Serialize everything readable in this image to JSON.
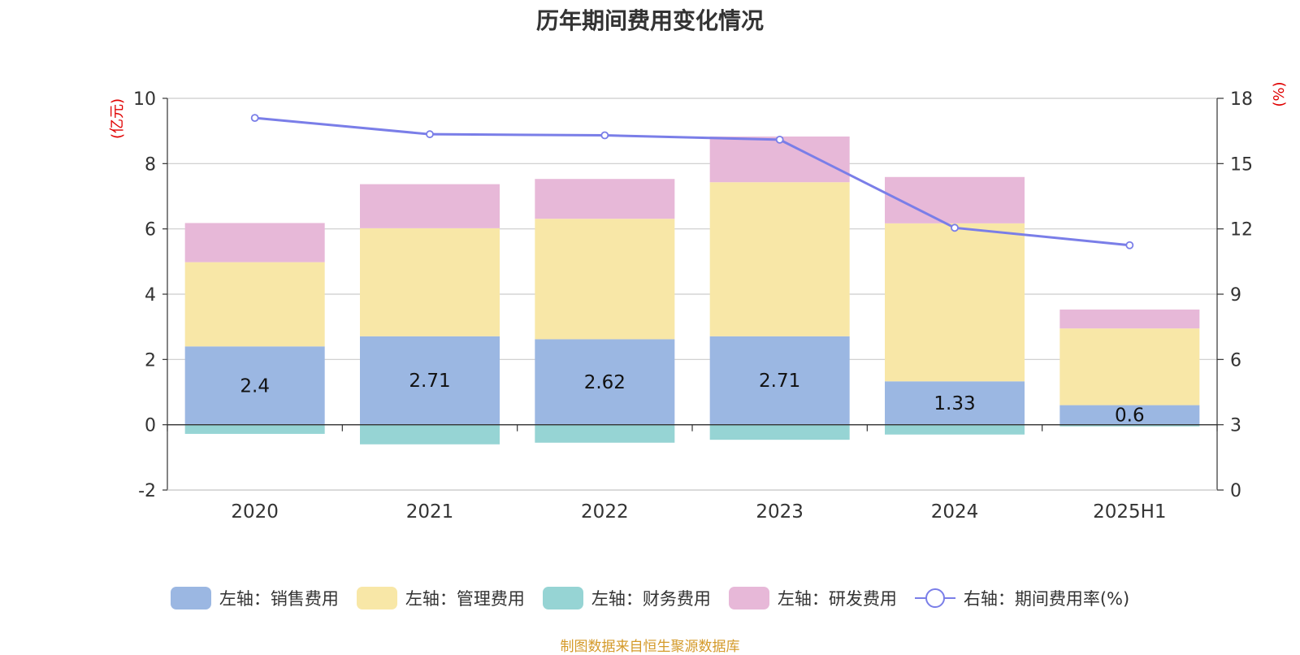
{
  "chart_data": {
    "type": "bar",
    "title": "历年期间费用变化情况",
    "categories": [
      "2020",
      "2021",
      "2022",
      "2023",
      "2024",
      "2025H1"
    ],
    "y_left_label": "(亿元)",
    "y_right_label": "(%)",
    "y_left_range": [
      -2,
      10
    ],
    "y_left_ticks": [
      "-2",
      "0",
      "2",
      "4",
      "6",
      "8",
      "10"
    ],
    "y_right_range": [
      0,
      18
    ],
    "y_right_ticks": [
      "0",
      "3",
      "6",
      "9",
      "12",
      "15",
      "18"
    ],
    "grid": true,
    "legend_position": "bottom",
    "series": [
      {
        "name": "左轴：销售费用",
        "color": "#9bb7e2",
        "values": [
          2.4,
          2.71,
          2.62,
          2.71,
          1.33,
          0.6
        ]
      },
      {
        "name": "左轴：管理费用",
        "color": "#f8e7a7",
        "values": [
          2.58,
          3.31,
          3.69,
          4.72,
          4.84,
          2.35
        ]
      },
      {
        "name": "左轴：财务费用",
        "color": "#96d4d4",
        "values": [
          -0.28,
          -0.6,
          -0.55,
          -0.46,
          -0.3,
          -0.05
        ]
      },
      {
        "name": "左轴：研发费用",
        "color": "#e7b8d8",
        "values": [
          1.2,
          1.35,
          1.22,
          1.4,
          1.42,
          0.58
        ]
      },
      {
        "name": "右轴：期间费用率(%)",
        "color": "#7a7ee8",
        "axis": "right",
        "type": "line",
        "values": [
          17.1,
          16.35,
          16.3,
          16.1,
          12.05,
          11.25
        ]
      }
    ],
    "data_labels": [
      "2.4",
      "2.71",
      "2.62",
      "2.71",
      "1.33",
      "0.6"
    ]
  },
  "source_note": "制图数据来自恒生聚源数据库"
}
